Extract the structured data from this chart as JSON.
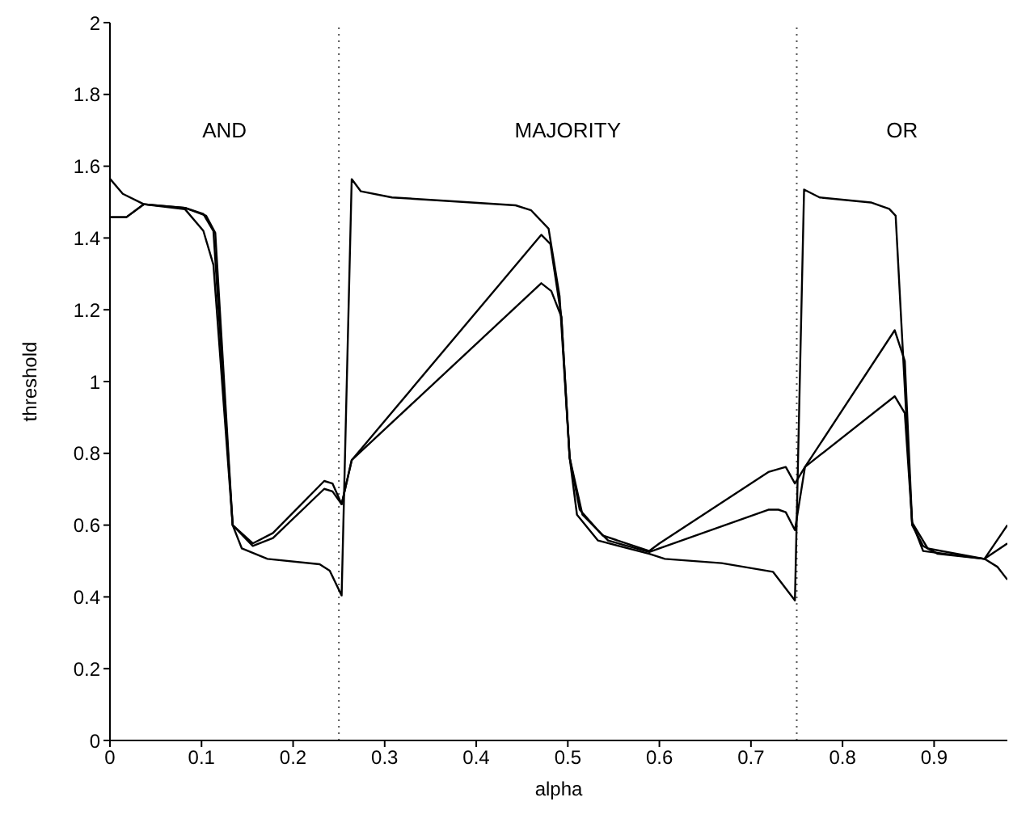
{
  "chart_data": {
    "type": "line",
    "xlabel": "alpha",
    "ylabel": "threshold",
    "xlim": [
      0,
      0.98
    ],
    "ylim": [
      0,
      2
    ],
    "xticks": [
      0,
      0.1,
      0.2,
      0.3,
      0.4,
      0.5,
      0.6,
      0.7,
      0.8,
      0.9
    ],
    "yticks": [
      0,
      0.2,
      0.4,
      0.6,
      0.8,
      1,
      1.2,
      1.4,
      1.6,
      1.8,
      2
    ],
    "grid": false,
    "legend": false,
    "marker": "none",
    "line_style": "solid",
    "annotations": [
      "AND",
      "MAJORITY",
      "OR"
    ],
    "ref_lines": [
      {
        "axis": "x",
        "value": 0.25,
        "color": "#555555",
        "line_style": "dotted"
      },
      {
        "axis": "x",
        "value": 0.75,
        "color": "#555555",
        "line_style": "dotted"
      }
    ],
    "series": [
      {
        "color": "#000000",
        "x": [
          0,
          0.014,
          0.037,
          0.082,
          0.102,
          0.113,
          0.134,
          0.144,
          0.172,
          0.229,
          0.24,
          0.253,
          0.264,
          0.274,
          0.308,
          0.364,
          0.443,
          0.46,
          0.479,
          0.491,
          0.502,
          0.51,
          0.533,
          0.589,
          0.606,
          0.668,
          0.724,
          0.748,
          0.758,
          0.775,
          0.831,
          0.851,
          0.858,
          0.876,
          0.888,
          0.904,
          0.955,
          0.969,
          0.98
        ],
        "values": [
          1.565,
          1.523,
          1.494,
          1.48,
          1.42,
          1.325,
          0.6,
          0.535,
          0.506,
          0.491,
          0.473,
          0.404,
          1.564,
          1.53,
          1.513,
          1.504,
          1.491,
          1.477,
          1.426,
          1.238,
          0.788,
          0.629,
          0.557,
          0.52,
          0.506,
          0.494,
          0.47,
          0.39,
          1.535,
          1.513,
          1.499,
          1.481,
          1.462,
          0.6,
          0.542,
          0.52,
          0.506,
          0.484,
          0.448
        ]
      },
      {
        "color": "#000000",
        "x": [
          0,
          0.018,
          0.037,
          0.082,
          0.105,
          0.115,
          0.134,
          0.156,
          0.178,
          0.234,
          0.243,
          0.253,
          0.264,
          0.471,
          0.481,
          0.493,
          0.502,
          0.513,
          0.538,
          0.589,
          0.6,
          0.719,
          0.738,
          0.748,
          0.759,
          0.857,
          0.868,
          0.876,
          0.893,
          0.955,
          0.98
        ],
        "values": [
          1.458,
          1.458,
          1.494,
          1.484,
          1.462,
          1.414,
          0.6,
          0.549,
          0.578,
          0.723,
          0.716,
          0.658,
          0.781,
          1.409,
          1.383,
          1.18,
          0.788,
          0.643,
          0.571,
          0.528,
          0.549,
          0.748,
          0.762,
          0.716,
          0.762,
          1.143,
          1.057,
          0.607,
          0.535,
          0.506,
          0.6
        ]
      },
      {
        "color": "#000000",
        "x": [
          0,
          0.018,
          0.037,
          0.082,
          0.102,
          0.113,
          0.134,
          0.156,
          0.178,
          0.234,
          0.243,
          0.253,
          0.264,
          0.471,
          0.482,
          0.493,
          0.502,
          0.516,
          0.544,
          0.589,
          0.6,
          0.719,
          0.73,
          0.738,
          0.748,
          0.759,
          0.857,
          0.868,
          0.876,
          0.888,
          0.955,
          0.98
        ],
        "values": [
          1.458,
          1.458,
          1.494,
          1.484,
          1.467,
          1.419,
          0.6,
          0.542,
          0.564,
          0.701,
          0.694,
          0.658,
          0.781,
          1.274,
          1.252,
          1.18,
          0.788,
          0.629,
          0.557,
          0.525,
          0.535,
          0.643,
          0.643,
          0.636,
          0.586,
          0.762,
          0.959,
          0.912,
          0.607,
          0.528,
          0.506,
          0.549
        ]
      }
    ]
  }
}
